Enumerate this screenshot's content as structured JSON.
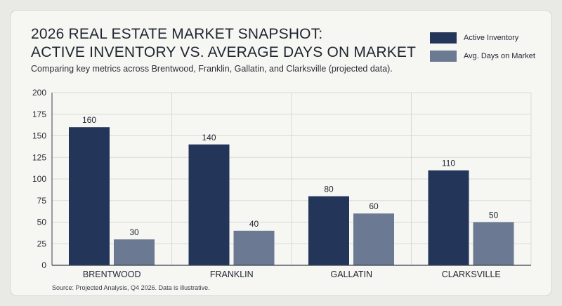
{
  "title_lines": [
    "2026 REAL ESTATE MARKET SNAPSHOT:",
    "ACTIVE INVENTORY VS. AVERAGE DAYS ON MARKET"
  ],
  "subtitle": "Comparing key metrics across Brentwood, Franklin, Gallatin, and Clarksville (projected data).",
  "source": "Source: Projected Analysis, Q4 2026. Data is illustrative.",
  "colors": {
    "active": "#24355a",
    "days": "#6b7993",
    "grid": "#d9d9d4",
    "axis": "#3a3e48"
  },
  "chart_data": {
    "type": "bar",
    "categories": [
      "BRENTWOOD",
      "FRANKLIN",
      "GALLATIN",
      "CLARKSVILLE"
    ],
    "series": [
      {
        "name": "Active Inventory",
        "values": [
          160,
          140,
          80,
          110
        ]
      },
      {
        "name": "Avg. Days on Market",
        "values": [
          30,
          40,
          60,
          50
        ]
      }
    ],
    "ylim": [
      0,
      200
    ],
    "yticks": [
      0,
      25,
      50,
      75,
      100,
      125,
      150,
      175,
      200
    ],
    "grid": true,
    "legend": "top-right",
    "xlabel": "",
    "ylabel": ""
  }
}
